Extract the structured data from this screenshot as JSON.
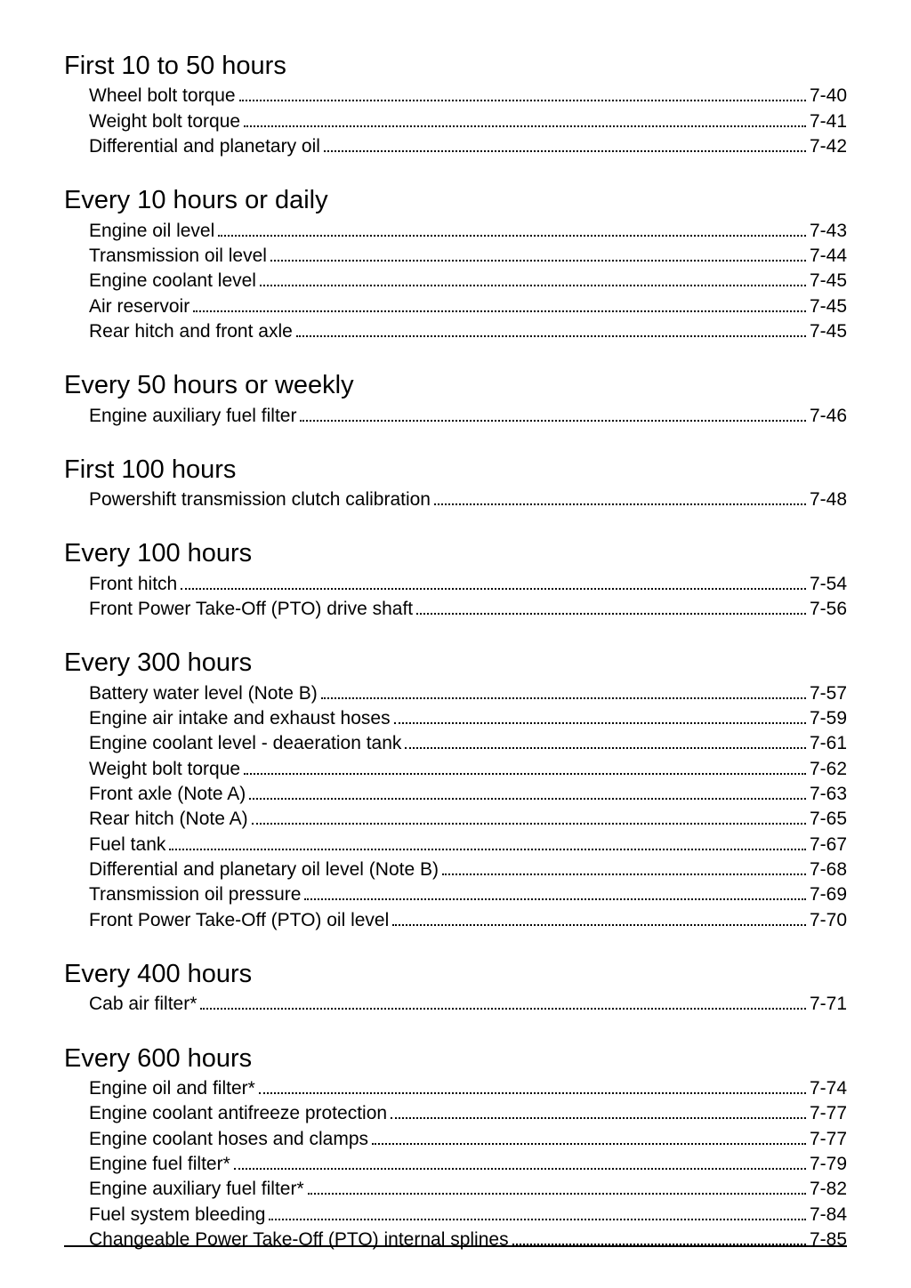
{
  "sections": [
    {
      "title": "First 10 to 50 hours",
      "entries": [
        {
          "label": "Wheel bolt torque",
          "page": "7-40"
        },
        {
          "label": "Weight bolt torque",
          "page": "7-41"
        },
        {
          "label": "Differential and planetary oil",
          "page": "7-42"
        }
      ]
    },
    {
      "title": "Every 10 hours or daily",
      "entries": [
        {
          "label": "Engine oil level",
          "page": "7-43"
        },
        {
          "label": "Transmission oil level",
          "page": "7-44"
        },
        {
          "label": "Engine coolant level",
          "page": "7-45"
        },
        {
          "label": "Air reservoir",
          "page": "7-45"
        },
        {
          "label": "Rear hitch and front axle",
          "page": "7-45"
        }
      ]
    },
    {
      "title": "Every 50 hours or weekly",
      "entries": [
        {
          "label": "Engine auxiliary fuel filter",
          "page": "7-46"
        }
      ]
    },
    {
      "title": "First 100 hours",
      "entries": [
        {
          "label": "Powershift transmission clutch calibration",
          "page": "7-48"
        }
      ]
    },
    {
      "title": "Every 100 hours",
      "entries": [
        {
          "label": "Front hitch",
          "page": "7-54"
        },
        {
          "label": "Front Power Take-Off (PTO) drive shaft",
          "page": "7-56"
        }
      ]
    },
    {
      "title": "Every 300 hours",
      "entries": [
        {
          "label": "Battery water level (Note B)",
          "page": "7-57"
        },
        {
          "label": "Engine air intake and exhaust hoses",
          "page": "7-59"
        },
        {
          "label": "Engine coolant level - deaeration tank",
          "page": "7-61"
        },
        {
          "label": "Weight bolt torque",
          "page": "7-62"
        },
        {
          "label": "Front axle (Note A)",
          "page": "7-63"
        },
        {
          "label": "Rear hitch (Note A)",
          "page": "7-65"
        },
        {
          "label": "Fuel tank",
          "page": "7-67"
        },
        {
          "label": "Differential and planetary oil level (Note B)",
          "page": "7-68"
        },
        {
          "label": "Transmission oil pressure",
          "page": "7-69"
        },
        {
          "label": "Front Power Take-Off (PTO) oil level",
          "page": "7-70"
        }
      ]
    },
    {
      "title": "Every 400 hours",
      "entries": [
        {
          "label": "Cab air filter*",
          "page": "7-71"
        }
      ]
    },
    {
      "title": "Every 600 hours",
      "entries": [
        {
          "label": "Engine oil and filter*",
          "page": "7-74"
        },
        {
          "label": "Engine coolant antifreeze protection",
          "page": "7-77"
        },
        {
          "label": "Engine coolant hoses and clamps",
          "page": "7-77"
        },
        {
          "label": "Engine fuel filter*",
          "page": "7-79"
        },
        {
          "label": "Engine auxiliary fuel filter*",
          "page": "7-82"
        },
        {
          "label": "Fuel system bleeding",
          "page": "7-84"
        },
        {
          "label": "Changeable Power Take-Off (PTO) internal splines",
          "page": "7-85"
        }
      ]
    }
  ]
}
